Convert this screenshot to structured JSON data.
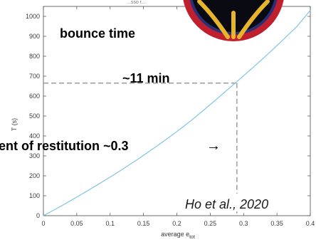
{
  "chart_data": {
    "type": "line",
    "xlabel": "average e",
    "xlabel_sub": "tot",
    "ylabel": "T (s)",
    "xlim": [
      0,
      0.4
    ],
    "ylim": [
      0,
      1050
    ],
    "xticks": [
      "0",
      "0.05",
      "0.1",
      "0.15",
      "0.2",
      "0.25",
      "0.3",
      "0.35",
      "0.4"
    ],
    "xtick_values": [
      0,
      0.05,
      0.1,
      0.15,
      0.2,
      0.25,
      0.3,
      0.35,
      0.4
    ],
    "yticks": [
      "0",
      "100",
      "200",
      "300",
      "400",
      "500",
      "600",
      "700",
      "800",
      "900",
      "1000"
    ],
    "ytick_values": [
      0,
      100,
      200,
      300,
      400,
      500,
      600,
      700,
      800,
      900,
      1000
    ],
    "grid": false,
    "series": [
      {
        "color": "#7fc4e6",
        "x": [
          0,
          0.02,
          0.04,
          0.06,
          0.08,
          0.1,
          0.12,
          0.14,
          0.16,
          0.18,
          0.2,
          0.22,
          0.24,
          0.26,
          0.28,
          0.3,
          0.32,
          0.34,
          0.36,
          0.38,
          0.4
        ],
        "y": [
          0,
          36,
          74,
          113,
          153,
          194,
          236,
          280,
          326,
          373,
          422,
          474,
          529,
          586,
          644,
          702,
          761,
          822,
          885,
          950,
          1030
        ]
      }
    ],
    "reference": {
      "x": 0.29,
      "y": 665,
      "color": "#7a7a7a"
    }
  },
  "annotations": {
    "bounce_time": "bounce time",
    "min_label": "~11 min",
    "restitution": "ent of restitution ~0.3",
    "arrow": "→",
    "citation": "Ho et al., 2020",
    "top_fragment": "...sso r..."
  },
  "logo": {
    "outer_color": "#c0202e",
    "ring_color": "#2a2f7a",
    "inner_color": "#0a0a12",
    "mark_color": "#e7b52a"
  }
}
